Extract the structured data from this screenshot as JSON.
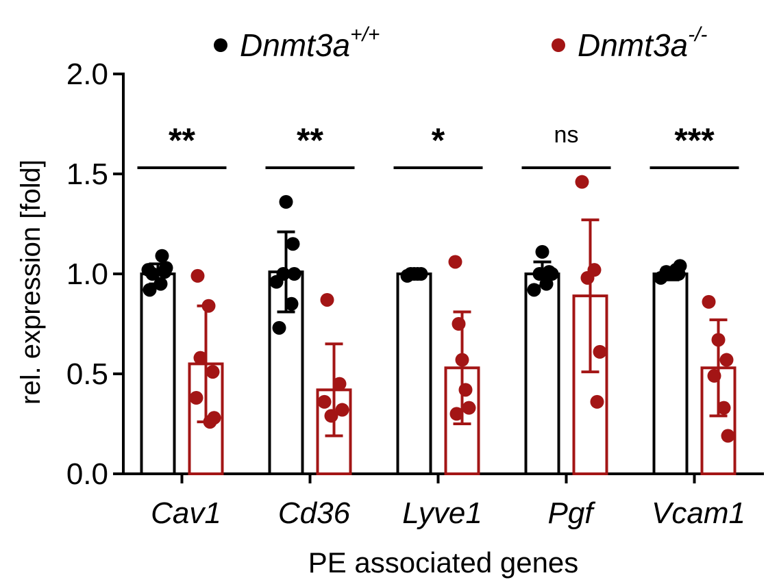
{
  "chart_data": {
    "type": "bar",
    "title": "",
    "xlabel": "PE associated genes",
    "ylabel": "rel. expression [fold]",
    "ylim": [
      0,
      2.0
    ],
    "yticks": [
      {
        "value": 0.0,
        "label": "0.0"
      },
      {
        "value": 0.5,
        "label": "0.5"
      },
      {
        "value": 1.0,
        "label": "1.0"
      },
      {
        "value": 1.5,
        "label": "1.5"
      },
      {
        "value": 2.0,
        "label": "2.0"
      }
    ],
    "categories": [
      "Cav1",
      "Cd36",
      "Lyve1",
      "Pgf",
      "Vcam1"
    ],
    "legend_position": "top",
    "series": [
      {
        "name_base": "Dnmt3a",
        "name_sup": "+/+",
        "color": "#000000",
        "values": [
          1.0,
          1.01,
          1.0,
          1.0,
          1.0
        ],
        "sd": [
          0.05,
          0.2,
          0.01,
          0.06,
          0.03
        ],
        "points": [
          [
            0.92,
            0.95,
            1.0,
            1.01,
            1.02,
            1.03,
            1.09
          ],
          [
            0.73,
            0.85,
            0.96,
            1.0,
            1.0,
            1.15,
            1.36
          ],
          [
            0.99,
            1.0,
            1.0,
            1.0,
            1.0
          ],
          [
            0.92,
            0.95,
            1.0,
            1.0,
            1.01,
            1.11
          ],
          [
            0.98,
            1.0,
            1.0,
            1.01,
            1.02,
            1.04
          ]
        ]
      },
      {
        "name_base": "Dnmt3a",
        "name_sup": "-/-",
        "color": "#a31515",
        "values": [
          0.55,
          0.42,
          0.53,
          0.89,
          0.53
        ],
        "sd": [
          0.29,
          0.23,
          0.28,
          0.38,
          0.24
        ],
        "points": [
          [
            0.99,
            0.84,
            0.58,
            0.51,
            0.38,
            0.28,
            0.26
          ],
          [
            0.87,
            0.45,
            0.36,
            0.32,
            0.29
          ],
          [
            1.06,
            0.75,
            0.57,
            0.42,
            0.33,
            0.3
          ],
          [
            1.46,
            1.02,
            0.98,
            0.61,
            0.36
          ],
          [
            0.86,
            0.67,
            0.57,
            0.49,
            0.33,
            0.19
          ]
        ]
      }
    ],
    "significance": [
      "**",
      "**",
      "*",
      "ns",
      "***"
    ]
  }
}
